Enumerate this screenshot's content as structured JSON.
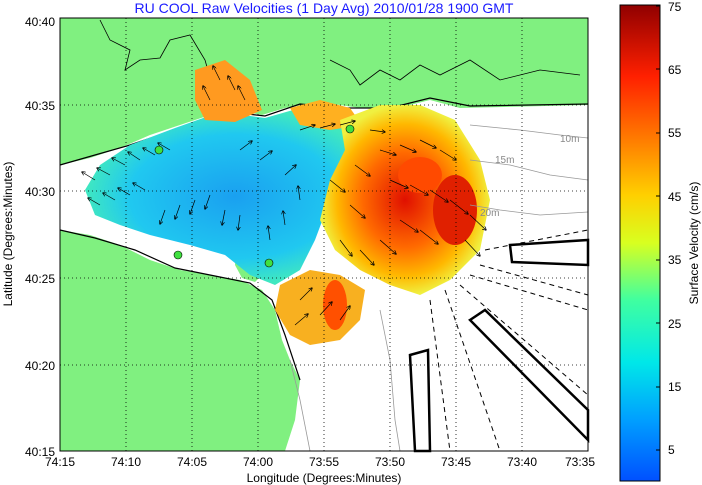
{
  "title": "RU COOL Raw Velocities (1 Day Avg) 2010/01/28 1900 GMT",
  "xaxis": {
    "label": "Longitude (Degrees:Minutes)",
    "ticks": [
      "74:15",
      "74:10",
      "74:05",
      "74:00",
      "73:55",
      "73:50",
      "73:45",
      "73:40",
      "73:35"
    ]
  },
  "yaxis": {
    "label": "Latitude (Degrees:Minutes)",
    "ticks": [
      "40:40",
      "40:35",
      "40:30",
      "40:25",
      "40:20",
      "40:15"
    ]
  },
  "colorbar": {
    "label": "Surface Velocity (cm/s)",
    "min": 0,
    "max": 75,
    "ticks": [
      "75",
      "65",
      "55",
      "45",
      "35",
      "25",
      "15",
      "5"
    ]
  },
  "depth_labels": [
    "10m",
    "15m",
    "20m"
  ],
  "colors": {
    "land": "#80f080",
    "title": "#1a1aff",
    "grid": "#000000"
  }
}
